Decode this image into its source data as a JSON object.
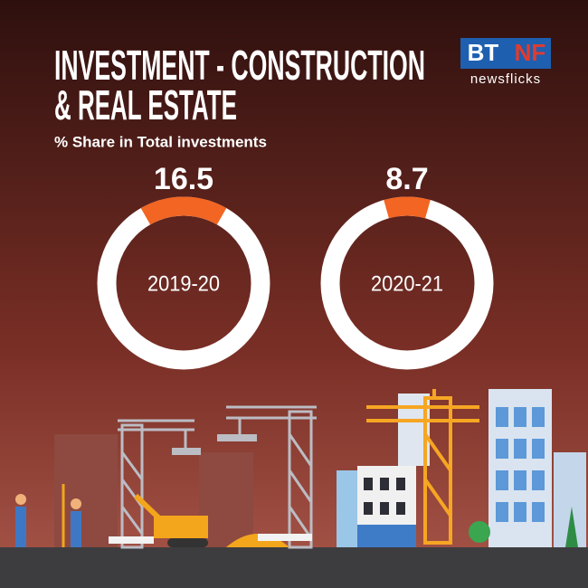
{
  "header": {
    "title_lines": [
      "INVESTMENT - CONSTRUCTION",
      "& REAL ESTATE"
    ],
    "subtitle": "% Share in Total investments"
  },
  "logo": {
    "left": "BT",
    "right": "NF",
    "tagline": "newsflicks"
  },
  "chart_data": [
    {
      "type": "donut",
      "categories": [
        "2019-20"
      ],
      "values": [
        16.5
      ],
      "color": "#f26522",
      "rest_color": "#ffffff"
    },
    {
      "type": "donut",
      "categories": [
        "2020-21"
      ],
      "values": [
        8.7
      ],
      "color": "#f26522",
      "rest_color": "#ffffff"
    }
  ]
}
